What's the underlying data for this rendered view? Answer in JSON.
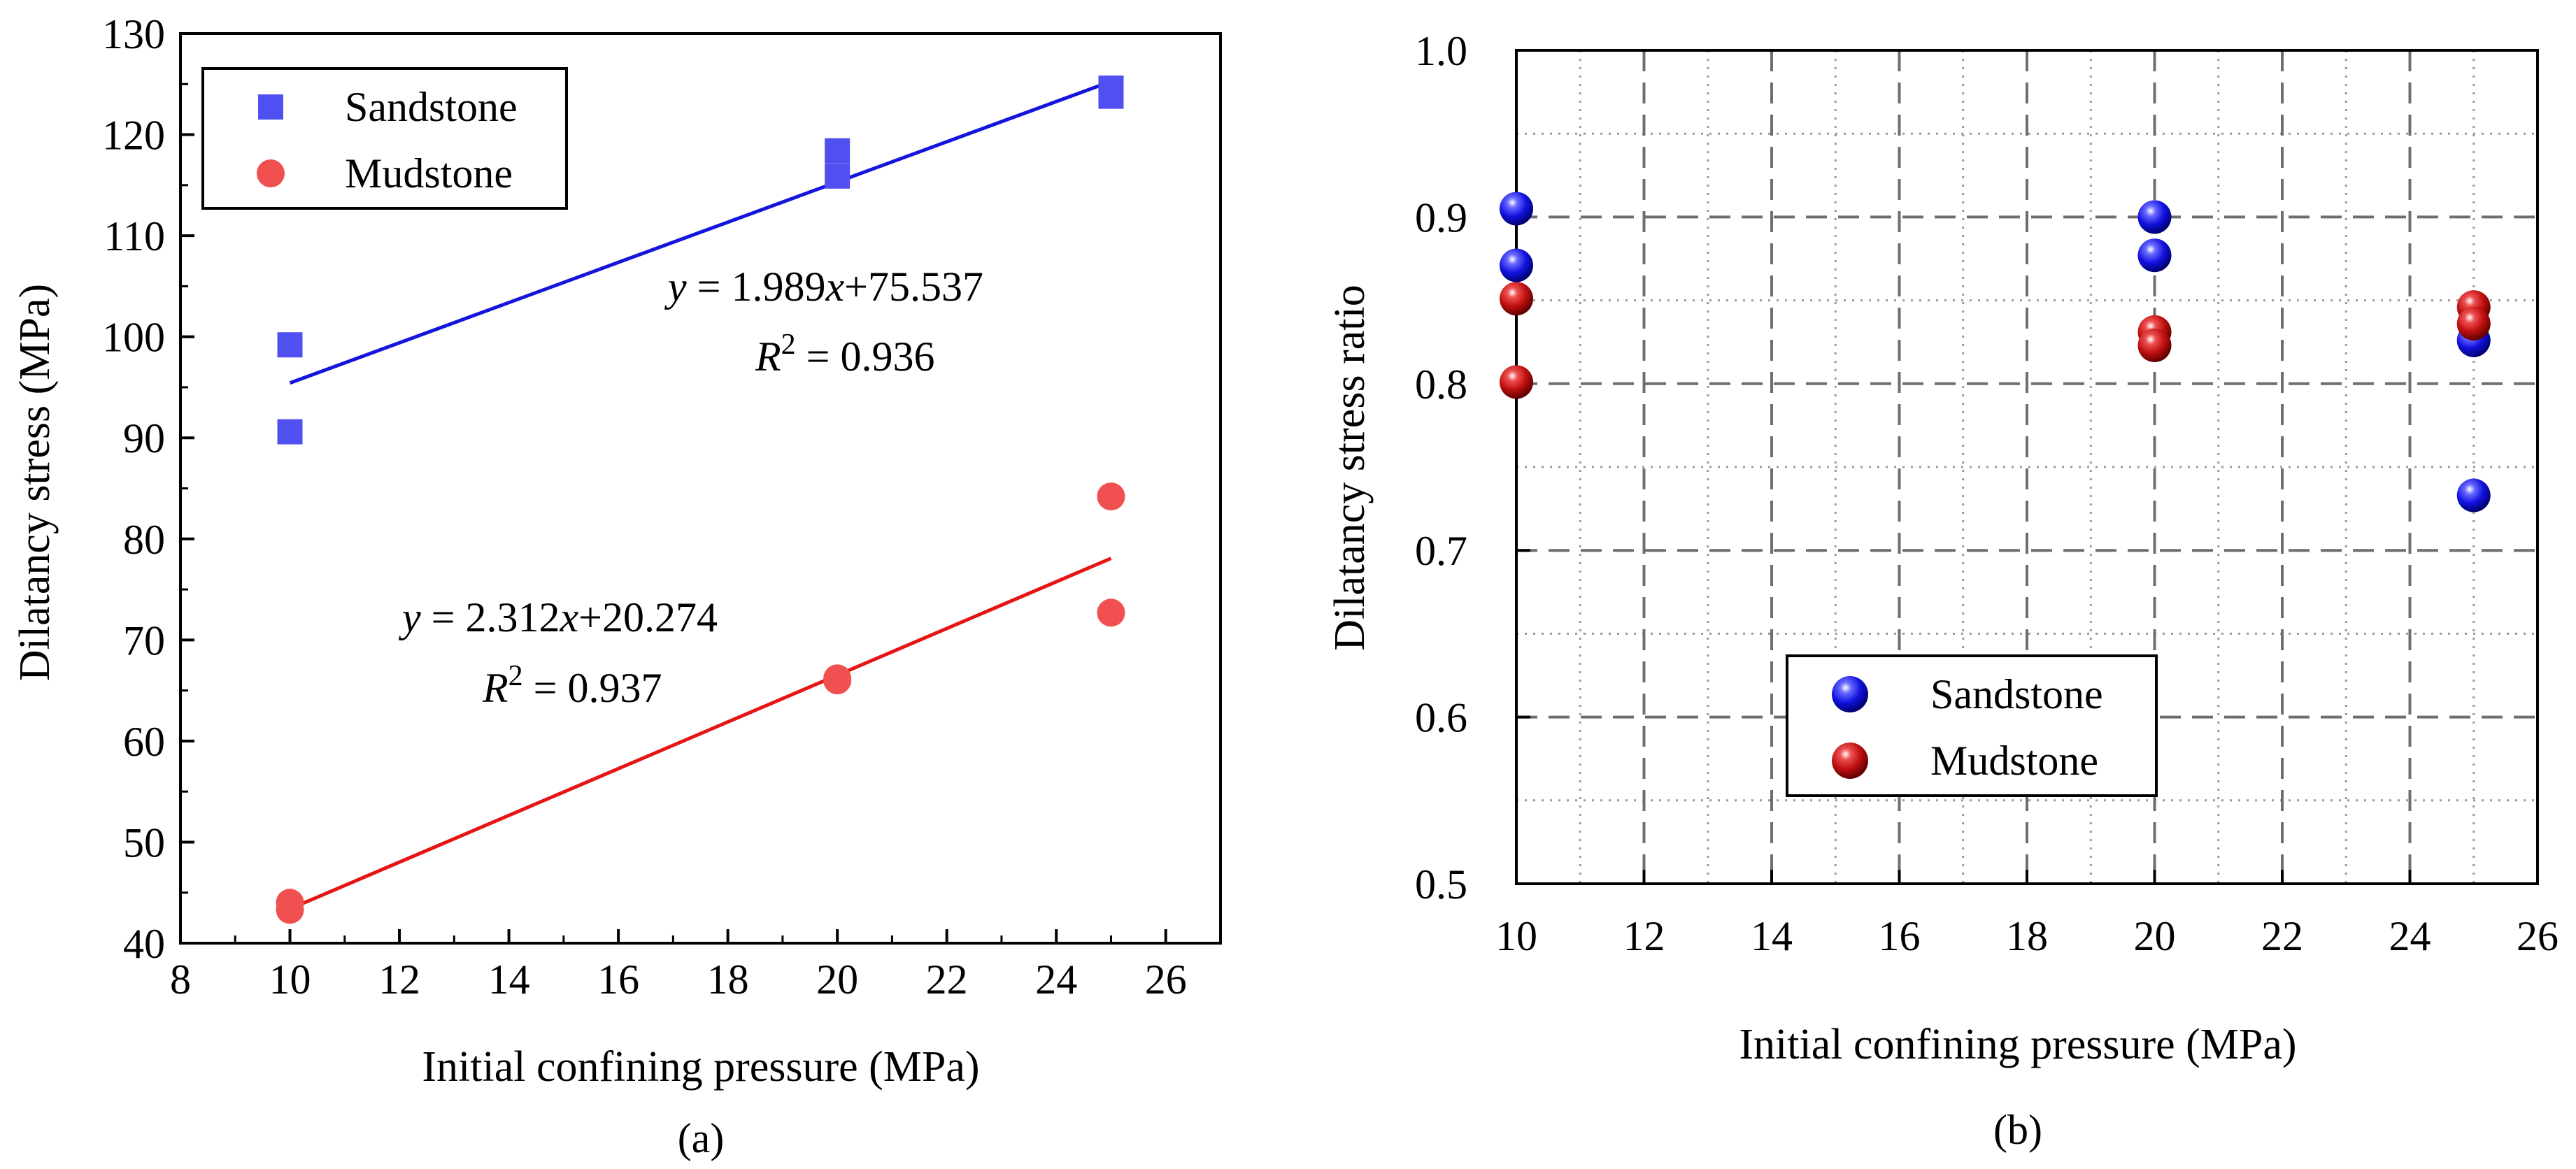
{
  "chart_data": [
    {
      "id": "a",
      "type": "scatter",
      "caption": "(a)",
      "xlabel": "Initial confining pressure (MPa)",
      "ylabel": "Dilatancy stress (MPa)",
      "xlim": [
        8,
        27
      ],
      "ylim": [
        40,
        130
      ],
      "xticks": [
        8,
        10,
        12,
        14,
        16,
        18,
        20,
        22,
        24,
        26
      ],
      "yticks": [
        40,
        50,
        60,
        70,
        80,
        90,
        100,
        110,
        120,
        130
      ],
      "grid": false,
      "legend_position": "top-left",
      "series": [
        {
          "name": "Sandstone",
          "marker": "square",
          "color": "#5050f0",
          "line_color": "#1414dc",
          "x": [
            10,
            10,
            20,
            20,
            25,
            25
          ],
          "y": [
            99.2,
            90.6,
            118.4,
            115.9,
            124.6,
            123.8
          ],
          "fit": {
            "slope": 1.989,
            "intercept": 75.537,
            "x_range": [
              10,
              25
            ]
          },
          "equation_parts": [
            "y",
            " = 1.989",
            "x",
            "+75.537"
          ],
          "r2_parts": [
            "R",
            "2",
            " = 0.936"
          ]
        },
        {
          "name": "Mudstone",
          "marker": "circle",
          "color": "#f05050",
          "line_color": "#e61414",
          "x": [
            10,
            10,
            20,
            20,
            25,
            25
          ],
          "y": [
            44.0,
            43.3,
            66.2,
            66.0,
            84.2,
            72.7
          ],
          "fit": {
            "slope": 2.312,
            "intercept": 20.274,
            "x_range": [
              10,
              25
            ]
          },
          "equation_parts": [
            "y",
            " = 2.312",
            "x",
            "+20.274"
          ],
          "r2_parts": [
            "R",
            "2",
            " = 0.937"
          ]
        }
      ]
    },
    {
      "id": "b",
      "type": "scatter",
      "caption": "(b)",
      "xlabel": "Initial confining pressure (MPa)",
      "ylabel": "Dilatancy stress ratio",
      "xlim": [
        10,
        26
      ],
      "ylim": [
        0.5,
        1.0
      ],
      "xticks": [
        10,
        12,
        14,
        16,
        18,
        20,
        22,
        24,
        26
      ],
      "yticks": [
        0.5,
        0.6,
        0.7,
        0.8,
        0.9,
        1.0
      ],
      "ytick_labels": [
        "0.5",
        "0.6",
        "0.7",
        "0.8",
        "0.9",
        "1.0"
      ],
      "grid": true,
      "legend_position": "bottom-center",
      "series": [
        {
          "name": "Sandstone",
          "marker": "sphere",
          "color": "#1e1ee6",
          "x": [
            10,
            10,
            20,
            20,
            25,
            25
          ],
          "y": [
            0.905,
            0.871,
            0.9,
            0.877,
            0.826,
            0.733
          ]
        },
        {
          "name": "Mudstone",
          "marker": "sphere",
          "color": "#c81414",
          "x": [
            10,
            10,
            20,
            20,
            25,
            25
          ],
          "y": [
            0.851,
            0.801,
            0.831,
            0.823,
            0.846,
            0.836
          ]
        }
      ]
    }
  ]
}
